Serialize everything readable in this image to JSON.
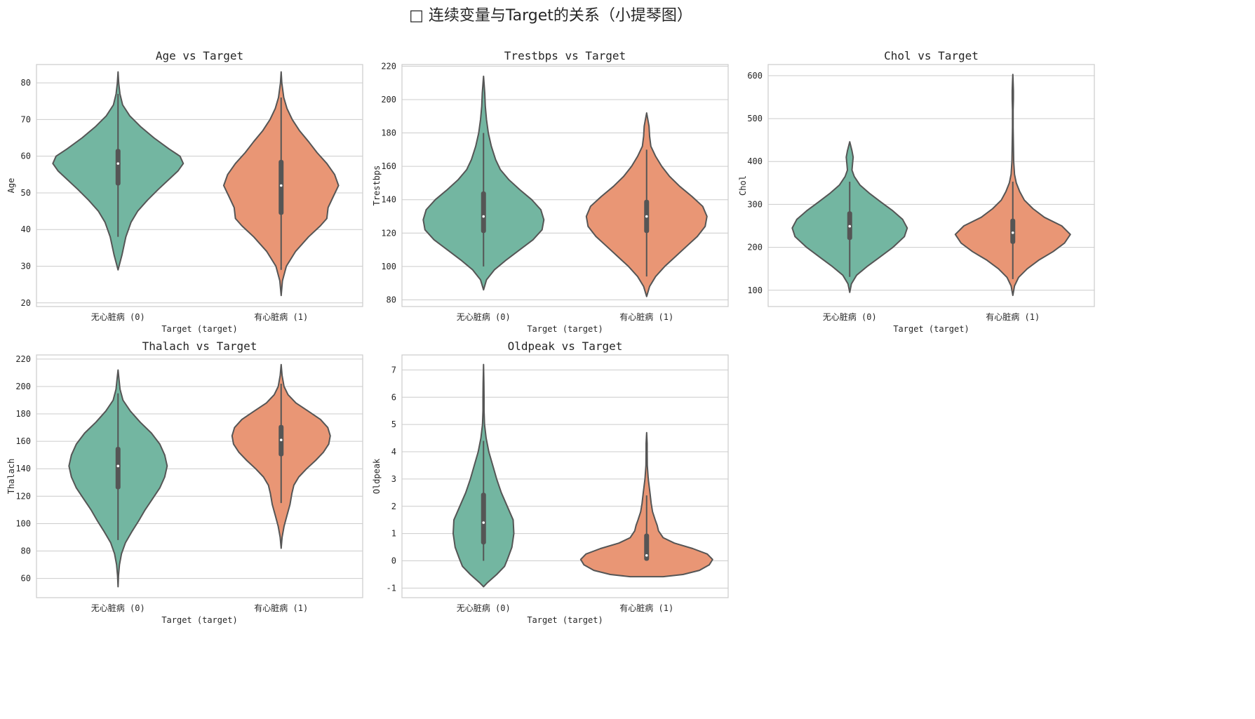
{
  "figure": {
    "suptitle": "□ 连续变量与Target的关系（小提琴图）",
    "palette": {
      "class0": "#73b6a1",
      "class1": "#e99675",
      "outline": "#555555",
      "grid": "#cccccc",
      "frame": "#cccccc"
    }
  },
  "chart_data": [
    {
      "type": "violin",
      "title": "Age vs Target",
      "xlabel": "Target (target)",
      "ylabel": "Age",
      "categories": [
        "无心脏病 (0)",
        "有心脏病 (1)"
      ],
      "yticks": [
        20,
        30,
        40,
        50,
        60,
        70,
        80
      ],
      "ylim": [
        19,
        85
      ],
      "grid": true,
      "series": [
        {
          "name": "无心脏病 (0)",
          "min": 29,
          "q1": 52,
          "median": 58,
          "q3": 62,
          "max": 83,
          "whisker_low": 38,
          "whisker_high": 77,
          "profile": [
            [
              29,
              0
            ],
            [
              33,
              0.06
            ],
            [
              38,
              0.12
            ],
            [
              42,
              0.2
            ],
            [
              45,
              0.3
            ],
            [
              48,
              0.45
            ],
            [
              51,
              0.62
            ],
            [
              54,
              0.8
            ],
            [
              56,
              0.92
            ],
            [
              58,
              1.0
            ],
            [
              60,
              0.95
            ],
            [
              62,
              0.78
            ],
            [
              65,
              0.55
            ],
            [
              68,
              0.35
            ],
            [
              71,
              0.18
            ],
            [
              74,
              0.07
            ],
            [
              77,
              0.03
            ],
            [
              80,
              0.01
            ],
            [
              83,
              0
            ]
          ]
        },
        {
          "name": "有心脏病 (1)",
          "min": 22,
          "q1": 44,
          "median": 52,
          "q3": 59,
          "max": 83,
          "whisker_low": 29,
          "whisker_high": 76,
          "profile": [
            [
              22,
              0
            ],
            [
              26,
              0.02
            ],
            [
              30,
              0.08
            ],
            [
              34,
              0.22
            ],
            [
              38,
              0.42
            ],
            [
              41,
              0.6
            ],
            [
              43,
              0.7
            ],
            [
              46,
              0.72
            ],
            [
              49,
              0.8
            ],
            [
              52,
              0.88
            ],
            [
              55,
              0.82
            ],
            [
              58,
              0.7
            ],
            [
              61,
              0.55
            ],
            [
              64,
              0.42
            ],
            [
              67,
              0.28
            ],
            [
              70,
              0.17
            ],
            [
              73,
              0.09
            ],
            [
              76,
              0.04
            ],
            [
              80,
              0.01
            ],
            [
              83,
              0
            ]
          ]
        }
      ]
    },
    {
      "type": "violin",
      "title": "Trestbps vs Target",
      "xlabel": "Target (target)",
      "ylabel": "Trestbps",
      "categories": [
        "无心脏病 (0)",
        "有心脏病 (1)"
      ],
      "yticks": [
        80,
        100,
        120,
        140,
        160,
        180,
        200,
        220
      ],
      "ylim": [
        76,
        221
      ],
      "grid": true,
      "series": [
        {
          "name": "无心脏病 (0)",
          "min": 86,
          "q1": 120,
          "median": 130,
          "q3": 145,
          "max": 214,
          "whisker_low": 100,
          "whisker_high": 180,
          "profile": [
            [
              86,
              0
            ],
            [
              92,
              0.05
            ],
            [
              98,
              0.18
            ],
            [
              104,
              0.38
            ],
            [
              110,
              0.6
            ],
            [
              116,
              0.82
            ],
            [
              122,
              0.97
            ],
            [
              128,
              1.0
            ],
            [
              134,
              0.95
            ],
            [
              140,
              0.8
            ],
            [
              146,
              0.6
            ],
            [
              152,
              0.42
            ],
            [
              158,
              0.28
            ],
            [
              164,
              0.2
            ],
            [
              172,
              0.13
            ],
            [
              180,
              0.08
            ],
            [
              188,
              0.05
            ],
            [
              196,
              0.03
            ],
            [
              204,
              0.02
            ],
            [
              214,
              0
            ]
          ]
        },
        {
          "name": "有心脏病 (1)",
          "min": 82,
          "q1": 120,
          "median": 130,
          "q3": 140,
          "max": 192,
          "whisker_low": 94,
          "whisker_high": 170,
          "profile": [
            [
              82,
              0
            ],
            [
              88,
              0.05
            ],
            [
              94,
              0.15
            ],
            [
              100,
              0.3
            ],
            [
              106,
              0.48
            ],
            [
              112,
              0.66
            ],
            [
              118,
              0.84
            ],
            [
              124,
              0.97
            ],
            [
              130,
              1.0
            ],
            [
              136,
              0.93
            ],
            [
              142,
              0.75
            ],
            [
              148,
              0.55
            ],
            [
              154,
              0.38
            ],
            [
              160,
              0.25
            ],
            [
              166,
              0.15
            ],
            [
              172,
              0.07
            ],
            [
              178,
              0.05
            ],
            [
              184,
              0.04
            ],
            [
              188,
              0.02
            ],
            [
              192,
              0
            ]
          ]
        }
      ]
    },
    {
      "type": "violin",
      "title": "Chol vs Target",
      "xlabel": "Target (target)",
      "ylabel": "Chol",
      "categories": [
        "无心脏病 (0)",
        "有心脏病 (1)"
      ],
      "yticks": [
        100,
        200,
        300,
        400,
        500,
        600
      ],
      "ylim": [
        62,
        626
      ],
      "grid": true,
      "series": [
        {
          "name": "无心脏病 (0)",
          "min": 95,
          "q1": 217,
          "median": 249,
          "q3": 284,
          "max": 446,
          "whisker_low": 131,
          "whisker_high": 353,
          "profile": [
            [
              95,
              0
            ],
            [
              115,
              0.03
            ],
            [
              135,
              0.12
            ],
            [
              155,
              0.3
            ],
            [
              175,
              0.5
            ],
            [
              200,
              0.75
            ],
            [
              225,
              0.95
            ],
            [
              245,
              1.0
            ],
            [
              265,
              0.92
            ],
            [
              285,
              0.75
            ],
            [
              305,
              0.55
            ],
            [
              325,
              0.35
            ],
            [
              345,
              0.18
            ],
            [
              365,
              0.08
            ],
            [
              380,
              0.04
            ],
            [
              395,
              0.05
            ],
            [
              410,
              0.06
            ],
            [
              425,
              0.04
            ],
            [
              446,
              0
            ]
          ]
        },
        {
          "name": "有心脏病 (1)",
          "min": 88,
          "q1": 208,
          "median": 234,
          "q3": 267,
          "max": 603,
          "whisker_low": 126,
          "whisker_high": 353,
          "profile": [
            [
              88,
              0
            ],
            [
              110,
              0.03
            ],
            [
              130,
              0.1
            ],
            [
              150,
              0.25
            ],
            [
              170,
              0.45
            ],
            [
              190,
              0.7
            ],
            [
              210,
              0.9
            ],
            [
              230,
              1.0
            ],
            [
              250,
              0.85
            ],
            [
              270,
              0.55
            ],
            [
              290,
              0.35
            ],
            [
              310,
              0.2
            ],
            [
              330,
              0.12
            ],
            [
              350,
              0.06
            ],
            [
              370,
              0.03
            ],
            [
              400,
              0.015
            ],
            [
              440,
              0.01
            ],
            [
              480,
              0.005
            ],
            [
              520,
              0.005
            ],
            [
              545,
              0.01
            ],
            [
              565,
              0.01
            ],
            [
              585,
              0.005
            ],
            [
              603,
              0
            ]
          ]
        }
      ]
    },
    {
      "type": "violin",
      "title": "Thalach vs Target",
      "xlabel": "Target (target)",
      "ylabel": "Thalach",
      "categories": [
        "无心脏病 (0)",
        "有心脏病 (1)"
      ],
      "yticks": [
        60,
        80,
        100,
        120,
        140,
        160,
        180,
        200,
        220
      ],
      "ylim": [
        46,
        223
      ],
      "grid": true,
      "series": [
        {
          "name": "无心脏病 (0)",
          "min": 54,
          "q1": 125,
          "median": 142,
          "q3": 156,
          "max": 212,
          "whisker_low": 88,
          "whisker_high": 195,
          "profile": [
            [
              54,
              0
            ],
            [
              62,
              0.01
            ],
            [
              70,
              0.03
            ],
            [
              78,
              0.07
            ],
            [
              86,
              0.15
            ],
            [
              94,
              0.28
            ],
            [
              102,
              0.42
            ],
            [
              110,
              0.55
            ],
            [
              118,
              0.7
            ],
            [
              126,
              0.85
            ],
            [
              134,
              0.95
            ],
            [
              142,
              1.0
            ],
            [
              150,
              0.95
            ],
            [
              158,
              0.85
            ],
            [
              166,
              0.68
            ],
            [
              174,
              0.45
            ],
            [
              182,
              0.25
            ],
            [
              190,
              0.1
            ],
            [
              198,
              0.04
            ],
            [
              205,
              0.02
            ],
            [
              212,
              0
            ]
          ]
        },
        {
          "name": "有心脏病 (1)",
          "min": 82,
          "q1": 149,
          "median": 161,
          "q3": 172,
          "max": 216,
          "whisker_low": 115,
          "whisker_high": 202,
          "profile": [
            [
              82,
              0
            ],
            [
              90,
              0.02
            ],
            [
              98,
              0.06
            ],
            [
              106,
              0.12
            ],
            [
              114,
              0.18
            ],
            [
              122,
              0.22
            ],
            [
              128,
              0.26
            ],
            [
              134,
              0.36
            ],
            [
              140,
              0.52
            ],
            [
              146,
              0.7
            ],
            [
              152,
              0.86
            ],
            [
              158,
              0.97
            ],
            [
              164,
              1.0
            ],
            [
              170,
              0.95
            ],
            [
              176,
              0.8
            ],
            [
              182,
              0.55
            ],
            [
              188,
              0.3
            ],
            [
              194,
              0.14
            ],
            [
              200,
              0.06
            ],
            [
              208,
              0.02
            ],
            [
              216,
              0
            ]
          ]
        }
      ]
    },
    {
      "type": "violin",
      "title": "Oldpeak vs Target",
      "xlabel": "Target (target)",
      "ylabel": "Oldpeak",
      "categories": [
        "无心脏病 (0)",
        "有心脏病 (1)"
      ],
      "yticks": [
        -1,
        0,
        1,
        2,
        3,
        4,
        5,
        6,
        7
      ],
      "ylim": [
        -1.35,
        7.55
      ],
      "grid": true,
      "series": [
        {
          "name": "无心脏病 (0)",
          "min": -0.95,
          "q1": 0.6,
          "median": 1.4,
          "q3": 2.5,
          "max": 7.2,
          "whisker_low": 0.0,
          "whisker_high": 4.4,
          "profile": [
            [
              -0.95,
              0
            ],
            [
              -0.8,
              0.06
            ],
            [
              -0.5,
              0.2
            ],
            [
              -0.2,
              0.32
            ],
            [
              0.1,
              0.37
            ],
            [
              0.5,
              0.43
            ],
            [
              1.0,
              0.46
            ],
            [
              1.5,
              0.45
            ],
            [
              2.0,
              0.36
            ],
            [
              2.5,
              0.27
            ],
            [
              3.0,
              0.2
            ],
            [
              3.5,
              0.14
            ],
            [
              4.0,
              0.08
            ],
            [
              4.5,
              0.04
            ],
            [
              5.0,
              0.015
            ],
            [
              5.5,
              0.008
            ],
            [
              6.0,
              0.008
            ],
            [
              6.5,
              0.006
            ],
            [
              7.2,
              0
            ]
          ]
        },
        {
          "name": "有心脏病 (1)",
          "min": -0.58,
          "q1": 0.0,
          "median": 0.2,
          "q3": 1.0,
          "max": 4.7,
          "whisker_low": 0.0,
          "whisker_high": 2.4,
          "profile": [
            [
              -0.58,
              0.25
            ],
            [
              -0.5,
              0.55
            ],
            [
              -0.35,
              0.8
            ],
            [
              -0.15,
              0.95
            ],
            [
              0.05,
              1.0
            ],
            [
              0.25,
              0.92
            ],
            [
              0.45,
              0.7
            ],
            [
              0.65,
              0.42
            ],
            [
              0.85,
              0.25
            ],
            [
              1.1,
              0.18
            ],
            [
              1.3,
              0.16
            ],
            [
              1.5,
              0.13
            ],
            [
              1.8,
              0.09
            ],
            [
              2.1,
              0.07
            ],
            [
              2.5,
              0.05
            ],
            [
              3.0,
              0.025
            ],
            [
              3.5,
              0.01
            ],
            [
              4.0,
              0.008
            ],
            [
              4.3,
              0.008
            ],
            [
              4.7,
              0
            ]
          ]
        }
      ]
    }
  ]
}
